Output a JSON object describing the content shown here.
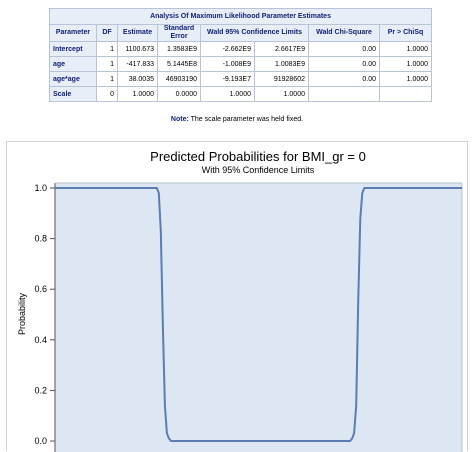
{
  "table": {
    "caption": "Analysis Of Maximum Likelihood Parameter Estimates",
    "headers": [
      "Parameter",
      "DF",
      "Estimate",
      "Standard Error",
      "Wald 95% Confidence Limits",
      "Wald Chi-Square",
      "Pr > ChiSq"
    ],
    "rows": [
      {
        "parameter": "Intercept",
        "df": "1",
        "estimate": "1100.673",
        "std_error": "1.3583E9",
        "lower": "-2.662E9",
        "upper": "2.6617E9",
        "chisq": "0.00",
        "p": "1.0000"
      },
      {
        "parameter": "age",
        "df": "1",
        "estimate": "-417.833",
        "std_error": "5.1445E8",
        "lower": "-1.008E9",
        "upper": "1.0083E9",
        "chisq": "0.00",
        "p": "1.0000"
      },
      {
        "parameter": "age*age",
        "df": "1",
        "estimate": "38.0035",
        "std_error": "46903190",
        "lower": "-9.193E7",
        "upper": "91928602",
        "chisq": "0.00",
        "p": "1.0000"
      },
      {
        "parameter": "Scale",
        "df": "0",
        "estimate": "1.0000",
        "std_error": "0.0000",
        "lower": "1.0000",
        "upper": "1.0000",
        "chisq": "",
        "p": ""
      }
    ]
  },
  "note": {
    "label": "Note:",
    "text": "The scale parameter was held fixed."
  },
  "chart_data": {
    "type": "line",
    "title": "Predicted Probabilities for BMI_gr = 0",
    "subtitle": "With 95% Confidence Limits",
    "ylabel": "Probability",
    "xlabel": "",
    "ylim": [
      0,
      1
    ],
    "yticks": [
      "0.0",
      "0.2",
      "0.4",
      "0.6",
      "0.8",
      "1.0"
    ],
    "grid": false,
    "colors": {
      "line": "#5b7db1",
      "band": "#dde7f3"
    },
    "series": [
      {
        "x": [
          0,
          0.25,
          0.255,
          0.26,
          0.265,
          0.27,
          0.275,
          0.28,
          0.285,
          0.29,
          0.72,
          0.725,
          0.73,
          0.735,
          0.74,
          0.745,
          0.75,
          0.755,
          0.76,
          1
        ],
        "values": [
          1.0,
          1.0,
          0.98,
          0.83,
          0.45,
          0.14,
          0.03,
          0.01,
          0.0,
          0.0,
          0.0,
          0.0,
          0.01,
          0.03,
          0.14,
          0.55,
          0.88,
          0.98,
          1.0,
          1.0
        ]
      }
    ]
  }
}
